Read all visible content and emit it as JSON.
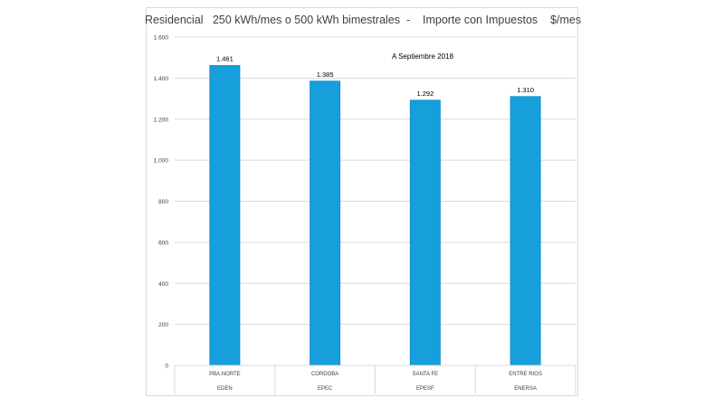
{
  "chart_data": {
    "type": "bar",
    "title": "Residencial   250 kWh/mes o 500 kWh bimestrales  -    Importe con Impuestos    $/mes",
    "subtitle": "A Septiembre 2018",
    "categories": [
      {
        "label": "PBA.NORTE",
        "sublabel": "EDEN"
      },
      {
        "label": "CORDOBA",
        "sublabel": "EPEC"
      },
      {
        "label": "SANTA FE",
        "sublabel": "EPESF"
      },
      {
        "label": "ENTRE RIOS",
        "sublabel": "ENERSA"
      }
    ],
    "values": [
      1461,
      1385,
      1292,
      1310
    ],
    "value_labels": [
      "1.461",
      "1.385",
      "1.292",
      "1.310"
    ],
    "yticks": [
      0,
      200,
      400,
      600,
      800,
      1000,
      1200,
      1400,
      1600
    ],
    "ytick_labels": [
      "0",
      "200",
      "400",
      "600",
      "800",
      "1.000",
      "1.200",
      "1.400",
      "1.600"
    ],
    "ylim": [
      0,
      1600
    ],
    "grid": true,
    "bar_color": "#169fdb",
    "bar_edge_color": "#1590d0",
    "grid_color": "#d9d9d9"
  }
}
